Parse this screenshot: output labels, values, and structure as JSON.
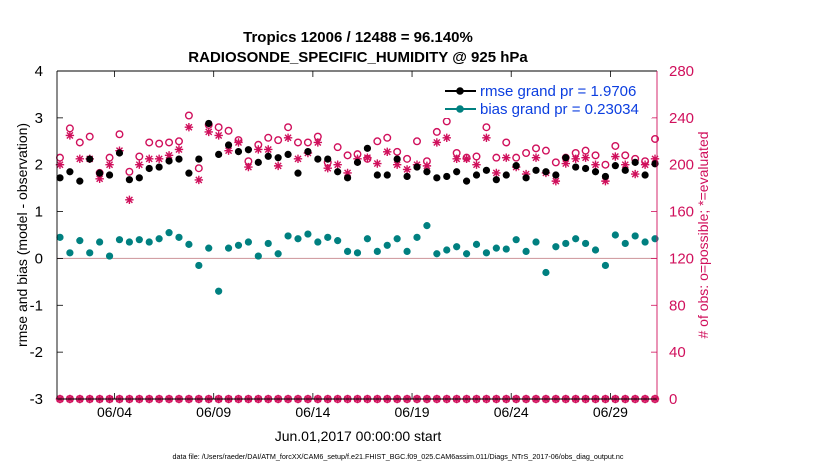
{
  "chart_data": {
    "type": "scatter",
    "title": "Tropics 12006 / 12488 = 96.140%",
    "subtitle": "RADIOSONDE_SPECIFIC_HUMIDITY @ 925 hPa",
    "xlabel": "Jun.01,2017 00:00:00 start",
    "ylabel": "rmse and bias (model - observation)",
    "ylabel_right": "# of obs: o=possible; *=evaluated",
    "footnote": "data file: /Users/raeder/DAI/ATM_forcXX/CAM6_setup/f.e21.FHIST_BGC.f09_025.CAM6assim.011/Diags_NTrS_2017-06/obs_diag_output.nc",
    "xlim": [
      0.6,
      30.85
    ],
    "ylim": [
      -3,
      4
    ],
    "ylim_right": [
      0,
      280
    ],
    "x_ticks": [
      3.5,
      8.5,
      13.5,
      18.5,
      23.5,
      28.5
    ],
    "x_tick_labels": [
      "06/04",
      "06/09",
      "06/14",
      "06/19",
      "06/24",
      "06/29"
    ],
    "y_ticks": [
      -3,
      -2,
      -1,
      0,
      1,
      2,
      3,
      4
    ],
    "y_tick_labels": [
      "-3",
      "-2",
      "-1",
      "0",
      "1",
      "2",
      "3",
      "4"
    ],
    "y_ticks_right": [
      0,
      40,
      80,
      120,
      160,
      200,
      240,
      280
    ],
    "y_tick_labels_right": [
      "0",
      "40",
      "80",
      "120",
      "160",
      "200",
      "240",
      "280"
    ],
    "colors": {
      "rmse": "#000000",
      "bias": "#008080",
      "obs": "#d0105c",
      "zero_line": "#d2a0a4",
      "legend_text": "#0b3ee0"
    },
    "series": [
      {
        "name": "rmse grand pr = 1.9706",
        "style": "black dots",
        "x": [
          0.75,
          1.25,
          1.75,
          2.25,
          2.75,
          3.25,
          3.75,
          4.25,
          4.75,
          5.25,
          5.75,
          6.25,
          6.75,
          7.25,
          7.75,
          8.25,
          8.75,
          9.25,
          9.75,
          10.25,
          10.75,
          11.25,
          11.75,
          12.25,
          12.75,
          13.25,
          13.75,
          14.25,
          14.75,
          15.25,
          15.75,
          16.25,
          16.75,
          17.25,
          17.75,
          18.25,
          18.75,
          19.25,
          19.75,
          20.25,
          20.75,
          21.25,
          21.75,
          22.25,
          22.75,
          23.25,
          23.75,
          24.25,
          24.75,
          25.25,
          25.75,
          26.25,
          26.75,
          27.25,
          27.75,
          28.25,
          28.75,
          29.25,
          29.75,
          30.25,
          30.75
        ],
        "values": [
          1.72,
          1.85,
          1.65,
          2.12,
          1.82,
          1.78,
          2.25,
          1.68,
          1.72,
          1.92,
          1.95,
          2.08,
          2.12,
          1.82,
          2.12,
          2.88,
          2.22,
          2.42,
          2.28,
          2.32,
          2.05,
          2.18,
          2.15,
          2.22,
          1.82,
          2.28,
          2.12,
          2.12,
          1.85,
          1.72,
          2.05,
          2.35,
          1.78,
          1.78,
          2.12,
          1.75,
          1.95,
          1.85,
          1.72,
          1.75,
          1.85,
          1.65,
          1.78,
          1.88,
          1.68,
          1.78,
          1.98,
          1.72,
          1.88,
          1.85,
          1.78,
          2.15,
          1.95,
          1.92,
          1.85,
          1.75,
          1.98,
          1.88,
          2.05,
          1.78,
          2.02
        ]
      },
      {
        "name": "bias grand pr = 0.23034",
        "style": "teal dots",
        "x": [
          0.75,
          1.25,
          1.75,
          2.25,
          2.75,
          3.25,
          3.75,
          4.25,
          4.75,
          5.25,
          5.75,
          6.25,
          6.75,
          7.25,
          7.75,
          8.25,
          8.75,
          9.25,
          9.75,
          10.25,
          10.75,
          11.25,
          11.75,
          12.25,
          12.75,
          13.25,
          13.75,
          14.25,
          14.75,
          15.25,
          15.75,
          16.25,
          16.75,
          17.25,
          17.75,
          18.25,
          18.75,
          19.25,
          19.75,
          20.25,
          20.75,
          21.25,
          21.75,
          22.25,
          22.75,
          23.25,
          23.75,
          24.25,
          24.75,
          25.25,
          25.75,
          26.25,
          26.75,
          27.25,
          27.75,
          28.25,
          28.75,
          29.25,
          29.75,
          30.25,
          30.75
        ],
        "values": [
          0.45,
          0.12,
          0.38,
          0.12,
          0.35,
          0.05,
          0.4,
          0.35,
          0.4,
          0.35,
          0.42,
          0.55,
          0.45,
          0.3,
          -0.15,
          0.22,
          -0.7,
          0.22,
          0.28,
          0.35,
          0.05,
          0.32,
          0.1,
          0.48,
          0.42,
          0.52,
          0.35,
          0.45,
          0.38,
          0.15,
          0.12,
          0.42,
          0.15,
          0.28,
          0.42,
          0.15,
          0.45,
          0.7,
          0.1,
          0.18,
          0.25,
          0.1,
          0.3,
          0.12,
          0.22,
          0.2,
          0.4,
          0.15,
          0.35,
          -0.3,
          0.25,
          0.32,
          0.42,
          0.32,
          0.18,
          -0.15,
          0.5,
          0.32,
          0.48,
          0.35,
          0.42
        ]
      },
      {
        "name": "possible",
        "style": "crimson open circles",
        "axis": "right",
        "x": [
          0.75,
          1.25,
          1.75,
          2.25,
          2.75,
          3.25,
          3.75,
          4.25,
          4.75,
          5.25,
          5.75,
          6.25,
          6.75,
          7.25,
          7.75,
          8.25,
          8.75,
          9.25,
          9.75,
          10.25,
          10.75,
          11.25,
          11.75,
          12.25,
          12.75,
          13.25,
          13.75,
          14.25,
          14.75,
          15.25,
          15.75,
          16.25,
          16.75,
          17.25,
          17.75,
          18.25,
          18.75,
          19.25,
          19.75,
          20.25,
          20.75,
          21.25,
          21.75,
          22.25,
          22.75,
          23.25,
          23.75,
          24.25,
          24.75,
          25.25,
          25.75,
          26.25,
          26.75,
          27.25,
          27.75,
          28.25,
          28.75,
          29.25,
          29.75,
          30.25,
          30.75
        ],
        "values": [
          206,
          231,
          219,
          224,
          193,
          206,
          226,
          194,
          207,
          219,
          218,
          219,
          220,
          242,
          197,
          234,
          232,
          229,
          221,
          203,
          217,
          223,
          221,
          232,
          219,
          219,
          224,
          202,
          215,
          208,
          209,
          205,
          220,
          223,
          211,
          205,
          220,
          203,
          228,
          237,
          210,
          206,
          207,
          232,
          206,
          219,
          206,
          210,
          214,
          212,
          202,
          206,
          210,
          212,
          208,
          200,
          216,
          208,
          205,
          203,
          222
        ]
      },
      {
        "name": "evaluated",
        "style": "crimson asterisks",
        "axis": "right",
        "x": [
          0.75,
          1.25,
          1.75,
          2.25,
          2.75,
          3.25,
          3.75,
          4.25,
          4.75,
          5.25,
          5.75,
          6.25,
          6.75,
          7.25,
          7.75,
          8.25,
          8.75,
          9.25,
          9.75,
          10.25,
          10.75,
          11.25,
          11.75,
          12.25,
          12.75,
          13.25,
          13.75,
          14.25,
          14.75,
          15.25,
          15.75,
          16.25,
          16.75,
          17.25,
          17.75,
          18.25,
          18.75,
          19.25,
          19.75,
          20.25,
          20.75,
          21.25,
          21.75,
          22.25,
          22.75,
          23.25,
          23.75,
          24.25,
          24.75,
          25.25,
          25.75,
          26.25,
          26.75,
          27.25,
          27.75,
          28.25,
          28.75,
          29.25,
          29.75,
          30.25,
          30.75
        ],
        "values": [
          200,
          225,
          205,
          205,
          188,
          200,
          212,
          170,
          200,
          205,
          205,
          208,
          213,
          232,
          187,
          228,
          225,
          212,
          219,
          198,
          213,
          213,
          199,
          223,
          205,
          210,
          219,
          197,
          200,
          193,
          205,
          206,
          201,
          211,
          200,
          196,
          200,
          199,
          219,
          223,
          205,
          205,
          200,
          223,
          193,
          206,
          198,
          192,
          206,
          193,
          186,
          201,
          205,
          206,
          200,
          186,
          207,
          200,
          192,
          200,
          205
        ]
      },
      {
        "name": "obs at zero",
        "style": "crimson circle+asterisk markers along 0",
        "axis": "right",
        "x": [
          0.75,
          1.25,
          1.75,
          2.25,
          2.75,
          3.25,
          3.75,
          4.25,
          4.75,
          5.25,
          5.75,
          6.25,
          6.75,
          7.25,
          7.75,
          8.25,
          8.75,
          9.25,
          9.75,
          10.25,
          10.75,
          11.25,
          11.75,
          12.25,
          12.75,
          13.25,
          13.75,
          14.25,
          14.75,
          15.25,
          15.75,
          16.25,
          16.75,
          17.25,
          17.75,
          18.25,
          18.75,
          19.25,
          19.75,
          20.25,
          20.75,
          21.25,
          21.75,
          22.25,
          22.75,
          23.25,
          23.75,
          24.25,
          24.75,
          25.25,
          25.75,
          26.25,
          26.75,
          27.25,
          27.75,
          28.25,
          28.75,
          29.25,
          29.75,
          30.25,
          30.75
        ],
        "values": [
          0,
          0,
          0,
          0,
          0,
          0,
          0,
          0,
          0,
          0,
          0,
          0,
          0,
          0,
          0,
          0,
          0,
          0,
          0,
          0,
          0,
          0,
          0,
          0,
          0,
          0,
          0,
          0,
          0,
          0,
          0,
          0,
          0,
          0,
          0,
          0,
          0,
          0,
          0,
          0,
          0,
          0,
          0,
          0,
          0,
          0,
          0,
          0,
          0,
          0,
          0,
          0,
          0,
          0,
          0,
          0,
          0,
          0,
          0,
          0,
          0
        ]
      }
    ],
    "legend": {
      "placement": "top-right",
      "entries": [
        "rmse grand pr = 1.9706",
        "bias grand pr = 0.23034"
      ]
    }
  }
}
